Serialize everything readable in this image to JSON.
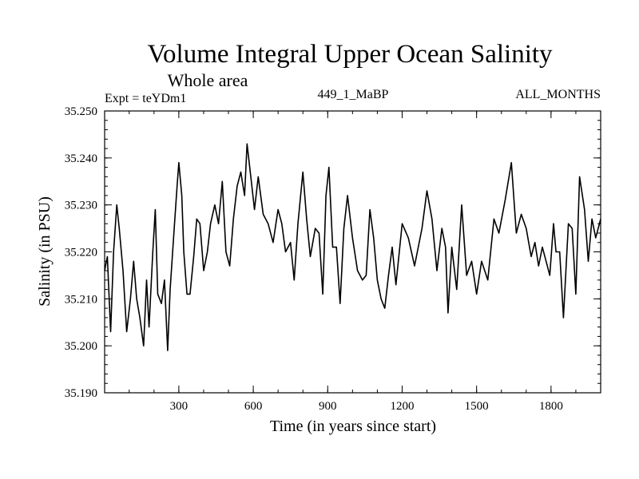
{
  "chart_data": {
    "type": "line",
    "title": "Volume Integral Upper Ocean Salinity",
    "subtitle": "Whole area",
    "expt_label": "Expt = teYDm1",
    "run_label": "449_1_MaBP",
    "months_label": "ALL_MONTHS",
    "xlabel": "Time (in years since start)",
    "ylabel": "Salinity (in PSU)",
    "xlim": [
      1,
      2000
    ],
    "ylim": [
      35.19,
      35.25
    ],
    "x_ticks": [
      300,
      600,
      900,
      1200,
      1500,
      1800
    ],
    "y_ticks": [
      "35.190",
      "35.200",
      "35.210",
      "35.220",
      "35.230",
      "35.240",
      "35.250"
    ],
    "series": [
      {
        "name": "Salinity",
        "color": "#000000",
        "x": [
          1,
          12,
          25,
          37,
          50,
          60,
          75,
          90,
          105,
          118,
          130,
          143,
          158,
          170,
          180,
          195,
          205,
          215,
          230,
          242,
          255,
          265,
          280,
          293,
          300,
          312,
          320,
          333,
          345,
          360,
          372,
          385,
          400,
          415,
          428,
          445,
          460,
          475,
          490,
          505,
          520,
          535,
          550,
          565,
          575,
          590,
          605,
          620,
          640,
          660,
          680,
          700,
          715,
          730,
          750,
          765,
          780,
          800,
          815,
          830,
          850,
          865,
          880,
          893,
          905,
          920,
          935,
          950,
          965,
          980,
          1000,
          1020,
          1040,
          1055,
          1070,
          1085,
          1100,
          1115,
          1130,
          1145,
          1160,
          1175,
          1200,
          1225,
          1250,
          1280,
          1300,
          1320,
          1340,
          1360,
          1375,
          1385,
          1400,
          1420,
          1440,
          1460,
          1480,
          1500,
          1520,
          1545,
          1570,
          1590,
          1615,
          1640,
          1660,
          1680,
          1700,
          1720,
          1735,
          1750,
          1765,
          1780,
          1795,
          1810,
          1820,
          1835,
          1850,
          1870,
          1885,
          1900,
          1915,
          1935,
          1950,
          1965,
          1980,
          2000
        ],
        "values": [
          35.216,
          35.219,
          35.203,
          35.22,
          35.23,
          35.225,
          35.216,
          35.203,
          35.21,
          35.218,
          35.21,
          35.206,
          35.2,
          35.214,
          35.204,
          35.22,
          35.229,
          35.211,
          35.209,
          35.214,
          35.199,
          35.212,
          35.224,
          35.234,
          35.239,
          35.232,
          35.22,
          35.211,
          35.211,
          35.219,
          35.227,
          35.226,
          35.216,
          35.22,
          35.226,
          35.23,
          35.226,
          35.235,
          35.22,
          35.217,
          35.227,
          35.234,
          35.237,
          35.232,
          35.243,
          35.236,
          35.229,
          35.236,
          35.228,
          35.226,
          35.222,
          35.229,
          35.226,
          35.22,
          35.222,
          35.214,
          35.226,
          35.237,
          35.227,
          35.219,
          35.225,
          35.224,
          35.211,
          35.232,
          35.238,
          35.221,
          35.221,
          35.209,
          35.225,
          35.232,
          35.223,
          35.216,
          35.214,
          35.215,
          35.229,
          35.223,
          35.214,
          35.21,
          35.208,
          35.215,
          35.221,
          35.213,
          35.226,
          35.223,
          35.217,
          35.225,
          35.233,
          35.227,
          35.216,
          35.225,
          35.221,
          35.207,
          35.221,
          35.212,
          35.23,
          35.215,
          35.218,
          35.211,
          35.218,
          35.214,
          35.227,
          35.224,
          35.231,
          35.239,
          35.224,
          35.228,
          35.225,
          35.219,
          35.222,
          35.217,
          35.221,
          35.218,
          35.215,
          35.226,
          35.22,
          35.22,
          35.206,
          35.226,
          35.225,
          35.211,
          35.236,
          35.229,
          35.218,
          35.227,
          35.223,
          35.227
        ]
      }
    ]
  }
}
